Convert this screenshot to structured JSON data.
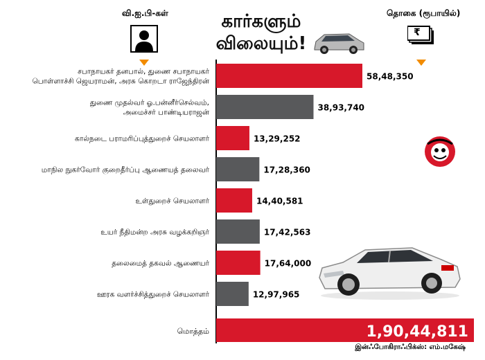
{
  "header": {
    "left_label": "வி.ஐ.பி-கள்",
    "title_line1": "கார்களும்",
    "title_line2": "விலையும்!",
    "right_label": "தொகை (ரூபாயில்)",
    "currency_symbol": "₹"
  },
  "credit": "இன்ஃபோகிராஃபிக்ஸ்: எம்.மகேஷ்",
  "colors": {
    "red": "#d7182a",
    "gray": "#58595b",
    "line": "#000000"
  },
  "chart_data": {
    "type": "bar",
    "orientation": "horizontal",
    "title": "கார்களும் விலையும்!",
    "categories": [
      [
        "சபாநாயகர் தனபால், துணை சபாநாயகர்",
        "பொள்ளாச்சி ஜெயராமன், அரசு கொறடா ராஜேந்திரன்"
      ],
      [
        "துணை முதல்வர் ஓ.பன்னீர்செல்வம்,",
        "அமைச்சர் பாண்டியராஜன்"
      ],
      [
        "கால்நடை பராமரிப்புத்துறைச் செயலாளர்"
      ],
      [
        "மாநில நுகர்வோர் குறைதீர்ப்பு ஆணையத் தலைவர்"
      ],
      [
        "உள்துறைச் செயலாளர்"
      ],
      [
        "உயர் நீதிமன்ற அரசு வழக்கறிஞர்"
      ],
      [
        "தலைமைத் தகவல் ஆணையர்"
      ],
      [
        "ஊரக வளர்ச்சித்துறைச் செயலாளர்"
      ]
    ],
    "values": [
      5848350,
      3893740,
      1329252,
      1728360,
      1440581,
      1742563,
      1764000,
      1297965
    ],
    "value_labels": [
      "58,48,350",
      "38,93,740",
      "13,29,252",
      "17,28,360",
      "14,40,581",
      "17,42,563",
      "17,64,000",
      "12,97,965"
    ],
    "bar_colors": [
      "red",
      "gray",
      "red",
      "gray",
      "red",
      "gray",
      "red",
      "gray"
    ],
    "total": {
      "label": "மொத்தம்",
      "value": 19044811,
      "value_label": "1,90,44,811"
    }
  }
}
